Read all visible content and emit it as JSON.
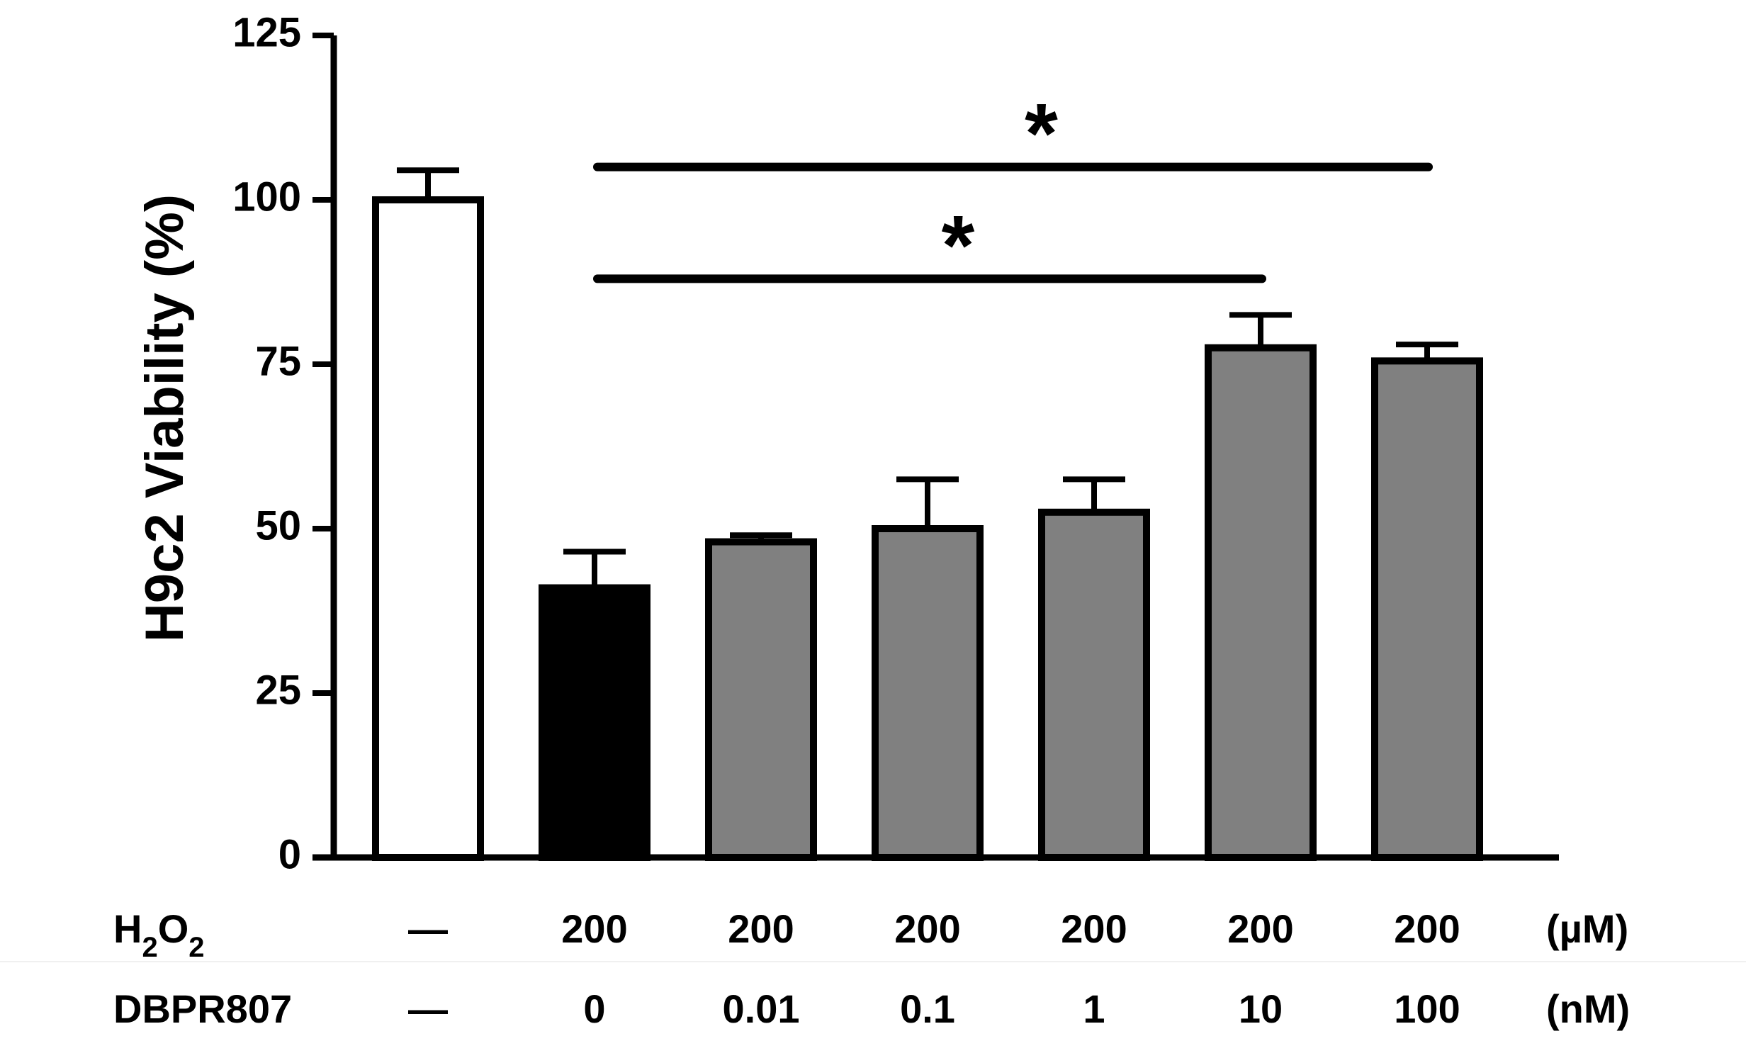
{
  "chart_data": {
    "type": "bar",
    "title": "",
    "ylabel": "H9c2 Viability (%)",
    "ylim": [
      0,
      125
    ],
    "yticks": [
      0,
      25,
      50,
      75,
      100,
      125
    ],
    "ytick_labels": [
      "0",
      "25",
      "50",
      "75",
      "100",
      "125"
    ],
    "grid": false,
    "bars": [
      {
        "value": 100,
        "error": 4.5,
        "fill": "#ffffff"
      },
      {
        "value": 41,
        "error": 5.5,
        "fill": "#000000"
      },
      {
        "value": 48,
        "error": 1.0,
        "fill": "#808080"
      },
      {
        "value": 50,
        "error": 7.5,
        "fill": "#808080"
      },
      {
        "value": 52.5,
        "error": 5.0,
        "fill": "#808080"
      },
      {
        "value": 77.5,
        "error": 5.0,
        "fill": "#808080"
      },
      {
        "value": 75.5,
        "error": 2.5,
        "fill": "#808080"
      }
    ],
    "treatment_rows": [
      {
        "label_main": "H",
        "label_sub1": "2",
        "label_mid": "O",
        "label_sub2": "2",
        "values": [
          "—",
          "200",
          "200",
          "200",
          "200",
          "200",
          "200"
        ],
        "unit": "(µM)"
      },
      {
        "label": "DBPR807",
        "values": [
          "—",
          "0",
          "0.01",
          "0.1",
          "1",
          "10",
          "100"
        ],
        "unit": "(nM)"
      }
    ],
    "significance": [
      {
        "from_bar": 1,
        "to_bar": 5,
        "symbol": "*",
        "y": 88
      },
      {
        "from_bar": 1,
        "to_bar": 6,
        "symbol": "*",
        "y": 105
      }
    ]
  }
}
